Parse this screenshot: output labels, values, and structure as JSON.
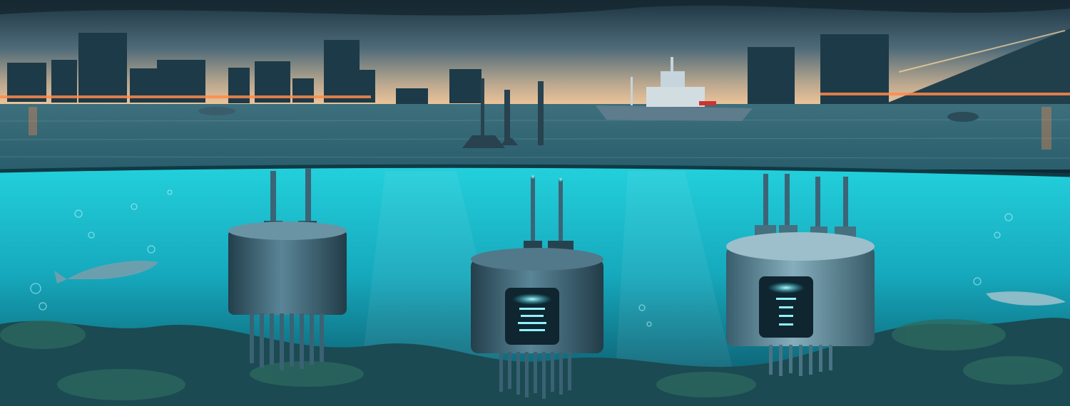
{
  "scene": {
    "description_visible_text": "",
    "colors": {
      "sky_top": "#1c3440",
      "sky_horizon": "#f2c79a",
      "water_surface": "#2f6b78",
      "underwater": "#1fc3d3",
      "seabed": "#1b4a52",
      "device_body": "#2f5868",
      "device_light": "#8ff3ff"
    },
    "elements": {
      "skyline": "city-skyline",
      "ship": "ship",
      "buoys": "surface-buoys",
      "sensors": [
        "sensor-left",
        "sensor-center",
        "sensor-right"
      ],
      "fish": [
        "fish-left",
        "fish-right"
      ]
    }
  }
}
